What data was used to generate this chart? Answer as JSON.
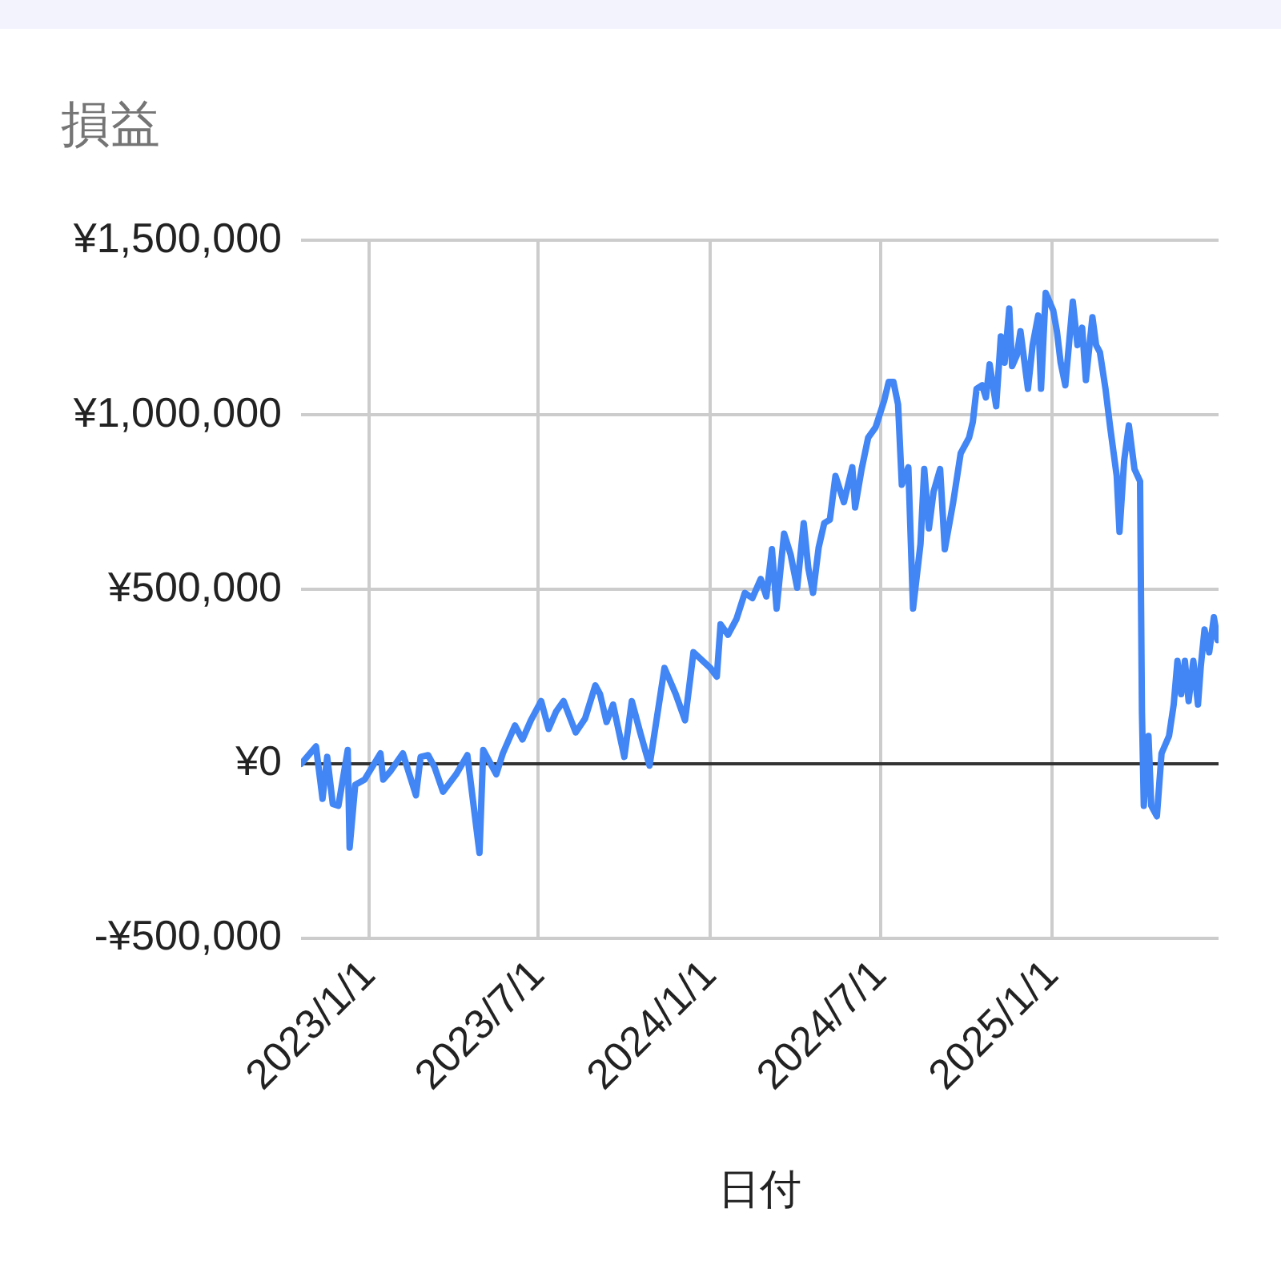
{
  "chart_data": {
    "type": "line",
    "title": "損益",
    "xlabel": "日付",
    "x": [
      "2022-10-20",
      "2022-11-05",
      "2022-11-12",
      "2022-11-17",
      "2022-11-23",
      "2022-11-29",
      "2022-12-09",
      "2022-12-11",
      "2022-12-17",
      "2022-12-27",
      "2023-01-13",
      "2023-01-16",
      "2023-01-24",
      "2023-02-06",
      "2023-02-20",
      "2023-02-25",
      "2023-03-05",
      "2023-03-12",
      "2023-03-21",
      "2023-04-04",
      "2023-04-16",
      "2023-04-29",
      "2023-05-03",
      "2023-05-17",
      "2023-05-24",
      "2023-06-06",
      "2023-06-14",
      "2023-06-23",
      "2023-07-04",
      "2023-07-12",
      "2023-07-20",
      "2023-07-28",
      "2023-08-10",
      "2023-08-20",
      "2023-08-31",
      "2023-09-05",
      "2023-09-12",
      "2023-09-19",
      "2023-10-01",
      "2023-10-09",
      "2023-10-18",
      "2023-10-28",
      "2023-11-13",
      "2023-11-25",
      "2023-12-05",
      "2023-12-14",
      "2024-01-01",
      "2024-01-08",
      "2024-01-12",
      "2024-01-20",
      "2024-01-29",
      "2024-02-07",
      "2024-02-15",
      "2024-02-24",
      "2024-03-01",
      "2024-03-07",
      "2024-03-12",
      "2024-03-20",
      "2024-03-27",
      "2024-04-03",
      "2024-04-10",
      "2024-04-15",
      "2024-04-20",
      "2024-04-26",
      "2024-05-02",
      "2024-05-08",
      "2024-05-14",
      "2024-05-23",
      "2024-06-01",
      "2024-06-04",
      "2024-06-11",
      "2024-06-18",
      "2024-06-26",
      "2024-07-05",
      "2024-07-10",
      "2024-07-15",
      "2024-07-20",
      "2024-07-24",
      "2024-07-31",
      "2024-08-05",
      "2024-08-13",
      "2024-08-17",
      "2024-08-22",
      "2024-08-27",
      "2024-09-03",
      "2024-09-08",
      "2024-09-17",
      "2024-09-25",
      "2024-10-04",
      "2024-10-08",
      "2024-10-12",
      "2024-10-18",
      "2024-10-22",
      "2024-10-26",
      "2024-11-02",
      "2024-11-07",
      "2024-11-11",
      "2024-11-16",
      "2024-11-19",
      "2024-11-24",
      "2024-11-28",
      "2024-12-06",
      "2024-12-11",
      "2024-12-17",
      "2024-12-20",
      "2024-12-25",
      "2025-01-02",
      "2025-01-06",
      "2025-01-10",
      "2025-01-15",
      "2025-01-23",
      "2025-01-28",
      "2025-02-02",
      "2025-02-06",
      "2025-02-13",
      "2025-02-17",
      "2025-02-21",
      "2025-02-27",
      "2025-03-04",
      "2025-03-11",
      "2025-03-14",
      "2025-03-19",
      "2025-03-24",
      "2025-03-30",
      "2025-04-05",
      "2025-04-07",
      "2025-04-09",
      "2025-04-14",
      "2025-04-17",
      "2025-04-23",
      "2025-04-28",
      "2025-05-06",
      "2025-05-11",
      "2025-05-15",
      "2025-05-19",
      "2025-05-23",
      "2025-05-27",
      "2025-06-01",
      "2025-06-06",
      "2025-06-09",
      "2025-06-13",
      "2025-06-18",
      "2025-06-23",
      "2025-06-27"
    ],
    "series": [
      {
        "color": "#4285f4",
        "values": [
          0,
          50000,
          -100000,
          20000,
          -115000,
          -120000,
          40000,
          -240000,
          -60000,
          -45000,
          30000,
          -45000,
          -20000,
          30000,
          -90000,
          20000,
          25000,
          -10000,
          -80000,
          -30000,
          25000,
          -255000,
          40000,
          -30000,
          30000,
          110000,
          70000,
          125000,
          180000,
          100000,
          150000,
          180000,
          90000,
          130000,
          225000,
          200000,
          120000,
          170000,
          20000,
          180000,
          90000,
          -5000,
          275000,
          200000,
          125000,
          320000,
          275000,
          250000,
          400000,
          370000,
          415000,
          490000,
          475000,
          530000,
          480000,
          615000,
          445000,
          660000,
          600000,
          505000,
          690000,
          560000,
          490000,
          620000,
          690000,
          700000,
          825000,
          750000,
          850000,
          735000,
          845000,
          935000,
          965000,
          1040000,
          1095000,
          1095000,
          1030000,
          800000,
          850000,
          445000,
          630000,
          845000,
          675000,
          780000,
          845000,
          615000,
          750000,
          890000,
          935000,
          980000,
          1075000,
          1085000,
          1050000,
          1145000,
          1025000,
          1225000,
          1150000,
          1305000,
          1140000,
          1170000,
          1240000,
          1075000,
          1200000,
          1285000,
          1075000,
          1350000,
          1300000,
          1240000,
          1150000,
          1085000,
          1325000,
          1200000,
          1250000,
          1100000,
          1280000,
          1200000,
          1180000,
          1075000,
          965000,
          825000,
          665000,
          870000,
          970000,
          845000,
          810000,
          150000,
          -120000,
          80000,
          -120000,
          -150000,
          30000,
          80000,
          170000,
          295000,
          200000,
          295000,
          180000,
          295000,
          170000,
          280000,
          385000,
          320000,
          420000,
          355000
        ]
      }
    ],
    "xlim": [
      "2022-10-20",
      "2025-06-28"
    ],
    "xticks": [
      {
        "value": "2023-01-01",
        "label": "2023/1/1"
      },
      {
        "value": "2023-07-01",
        "label": "2023/7/1"
      },
      {
        "value": "2024-01-01",
        "label": "2024/1/1"
      },
      {
        "value": "2024-07-01",
        "label": "2024/7/1"
      },
      {
        "value": "2025-01-01",
        "label": "2025/1/1"
      }
    ],
    "ylim": [
      -500000,
      1500000
    ],
    "yticks": [
      {
        "value": -500000,
        "label": "-¥500,000"
      },
      {
        "value": 0,
        "label": "¥0"
      },
      {
        "value": 500000,
        "label": "¥500,000"
      },
      {
        "value": 1000000,
        "label": "¥1,000,000"
      },
      {
        "value": 1500000,
        "label": "¥1,500,000"
      }
    ],
    "grid": true
  }
}
